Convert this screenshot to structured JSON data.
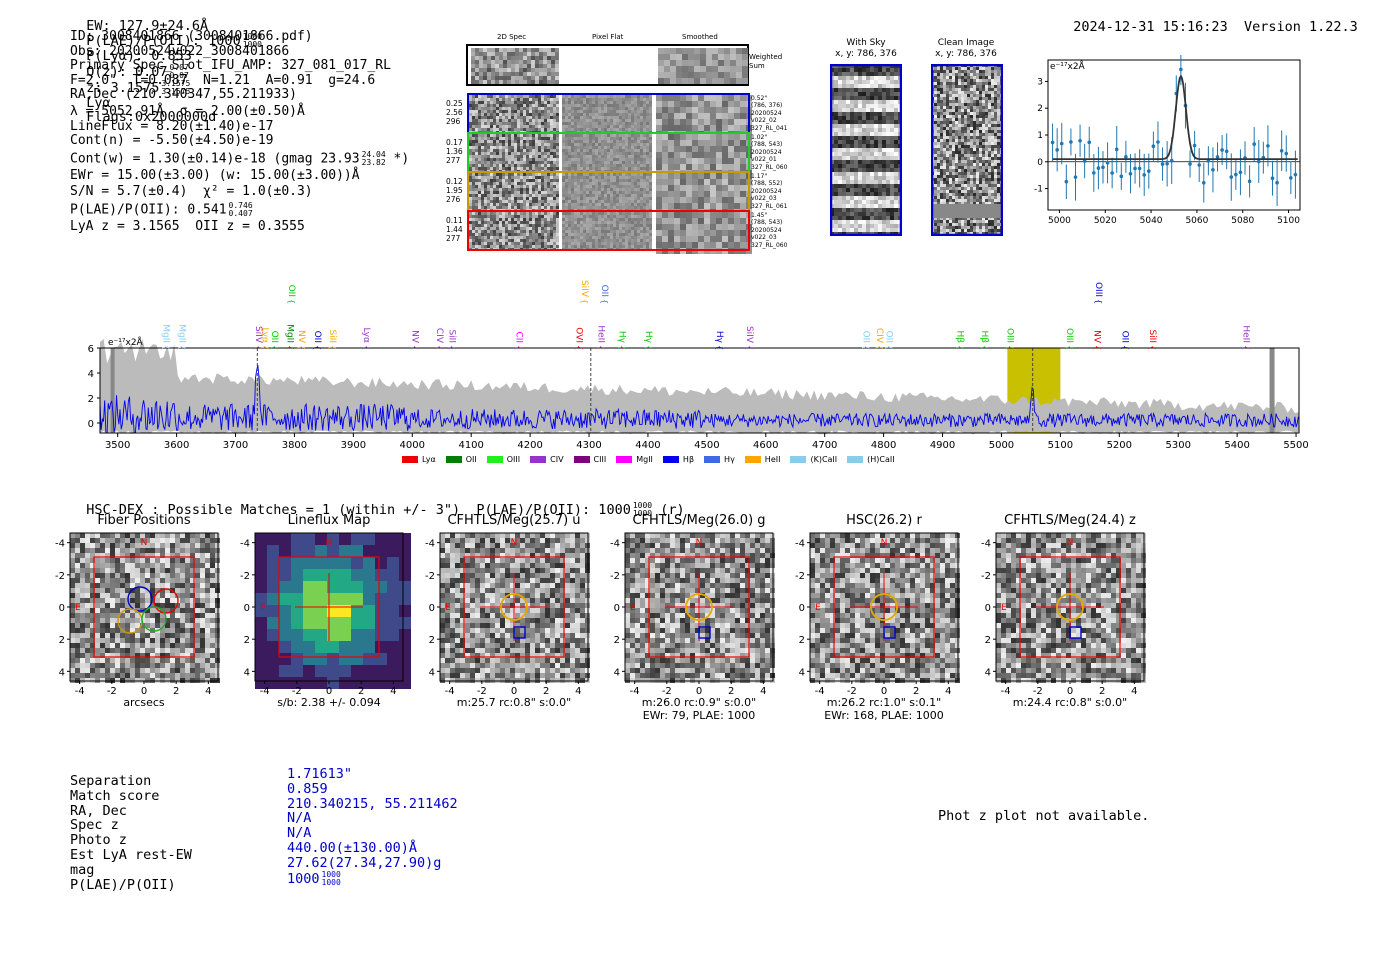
{
  "header": {
    "ew": "EW: 127.9±24.6Å",
    "plae_label": "P(LAE)/P(OII): 1000",
    "plae_hi": "1000",
    "plae_lo": "1000",
    "plya": "P(Lyα): 0.853",
    "qz": "Q(z): 0.07",
    "qz_hi": "0.07",
    "qz_lo": "0.07",
    "z": "z: 3.1575",
    "z_hi": "3.1575",
    "z_lo": "3.1575",
    "line": "Lyα",
    "flags": "Flags:0x2000000d",
    "timestamp": "2024-12-31 15:16:23",
    "version": "Version 1.22.3"
  },
  "info": {
    "l1": "ID: 3008401866 (3008401866.pdf)",
    "l2": "Obs: 20200524v022_3008401866",
    "l3": "Primary Spec_Slot_IFU_AMP: 327_081_017_RL",
    "l4": "F=2.0\"  T=0.087  N=1.21  A=0.91  g=24.6",
    "l5": "RA,Dec (210.340347,55.211933)",
    "l6": "λ = 5052.91Å  σ = 2.00(±0.50)Å",
    "l7": "LineFlux = 8.20(±1.40)e-17",
    "l8": "Cont(n) = -5.50(±4.50)e-19",
    "l9": "Cont(w) = 1.30(±0.14)e-18 (gmag 23.93",
    "l9_hi": "24.04",
    "l9_lo": "23.82",
    "l9_end": "*)",
    "l10": "EWr = 15.00(±3.00) (w: 15.00(±3.00))Å",
    "l11": "S/N = 5.7(±0.4)  χ² = 1.0(±0.3)",
    "l12": "P(LAE)/P(OII): 0.541",
    "l12_hi": "0.746",
    "l12_lo": "0.407",
    "l13": "LyA z = 3.1565  OII z = 0.3555"
  },
  "cutouts": {
    "col_titles": [
      "2D Spec",
      "Pixel Flat",
      "Smoothed"
    ],
    "weighted_sum": "Weighted Sum",
    "rows": [
      {
        "left": [
          "0.25",
          "2.56",
          "296"
        ],
        "right": [
          "0.52\"",
          "(786, 376)",
          "20200524",
          "v022_02",
          "327_RL_041"
        ],
        "color": "#0000cc"
      },
      {
        "left": [
          "0.17",
          "1.36",
          "277"
        ],
        "right": [
          "1.02\"",
          "(788, 543)",
          "20200524",
          "v022_01",
          "327_RL_060"
        ],
        "color": "#22cc22"
      },
      {
        "left": [
          "0.12",
          "1.95",
          "276"
        ],
        "right": [
          "1.17\"",
          "(788, 552)",
          "20200524",
          "v022_03",
          "327_RL_061"
        ],
        "color": "#cc9900"
      },
      {
        "left": [
          "0.11",
          "1.44",
          "277"
        ],
        "right": [
          "1.45\"",
          "(788, 543)",
          "20200524",
          "v022_03",
          "327_RL_060"
        ],
        "color": "#ee0000"
      }
    ]
  },
  "sky": {
    "with_sky_title": "With Sky",
    "with_sky_xy": "x, y: 786, 376",
    "clean_title": "Clean Image",
    "clean_xy": "x, y: 786, 376"
  },
  "zoom_chart": {
    "ylabel": "e⁻¹⁷x2Å",
    "yticks": [
      "3",
      "2",
      "1",
      "0",
      "-1"
    ],
    "xticks": [
      "5000",
      "5020",
      "5040",
      "5060",
      "5080",
      "5100"
    ]
  },
  "spectrum": {
    "ylabel": "e⁻¹⁷x2Å",
    "yticks": [
      "6",
      "4",
      "2",
      "0"
    ],
    "xticks": [
      "3500",
      "3600",
      "3700",
      "3800",
      "3900",
      "4000",
      "4100",
      "4200",
      "4300",
      "4400",
      "4500",
      "4600",
      "4700",
      "4800",
      "4900",
      "5000",
      "5100",
      "5200",
      "5300",
      "5400",
      "5500"
    ],
    "line_labels": [
      {
        "t": "MgII",
        "c": "#87ceeb",
        "x": 3573,
        "row": 1
      },
      {
        "t": "MgII",
        "c": "#87ceeb",
        "x": 3600,
        "row": 1
      },
      {
        "t": "SiIV",
        "c": "#9932cc",
        "x": 3730,
        "row": 1
      },
      {
        "t": "Lyα",
        "c": "#ffa500",
        "x": 3741,
        "row": 1
      },
      {
        "t": "OII",
        "c": "#00cc00",
        "x": 3757,
        "row": 1
      },
      {
        "t": "MgII",
        "c": "#008000",
        "x": 3783,
        "row": 1
      },
      {
        "t": "OII",
        "c": "#00cc00",
        "x": 3786,
        "row": 0
      },
      {
        "t": "NV",
        "c": "#ffa500",
        "x": 3803,
        "row": 1
      },
      {
        "t": "OII",
        "c": "#0000cc",
        "x": 3830,
        "row": 1
      },
      {
        "t": "SiII",
        "c": "#ffa500",
        "x": 3855,
        "row": 1
      },
      {
        "t": "Lyα",
        "c": "#9932cc",
        "x": 3913,
        "row": 1
      },
      {
        "t": "NV",
        "c": "#9932cc",
        "x": 3995,
        "row": 1
      },
      {
        "t": "CIV",
        "c": "#9932cc",
        "x": 4037,
        "row": 1
      },
      {
        "t": "SiII",
        "c": "#9932cc",
        "x": 4058,
        "row": 1
      },
      {
        "t": "CII",
        "c": "#ff00ff",
        "x": 4172,
        "row": 1
      },
      {
        "t": "OVI",
        "c": "#ee0000",
        "x": 4274,
        "row": 1
      },
      {
        "t": "SiIV",
        "c": "#ffa500",
        "x": 4283,
        "row": 0
      },
      {
        "t": "OII",
        "c": "#4169e1",
        "x": 4317,
        "row": 0
      },
      {
        "t": "HeII",
        "c": "#9932cc",
        "x": 4311,
        "row": 1
      },
      {
        "t": "Hγ",
        "c": "#00cc00",
        "x": 4347,
        "row": 1
      },
      {
        "t": "Hγ",
        "c": "#00cc00",
        "x": 4392,
        "row": 1
      },
      {
        "t": "Hγ",
        "c": "#0000cc",
        "x": 4512,
        "row": 1
      },
      {
        "t": "SiIV",
        "c": "#9932cc",
        "x": 4563,
        "row": 1
      },
      {
        "t": "OII",
        "c": "#87ceeb",
        "x": 4761,
        "row": 1
      },
      {
        "t": "CIV",
        "c": "#ffa500",
        "x": 4784,
        "row": 1
      },
      {
        "t": "OII",
        "c": "#87ceeb",
        "x": 4800,
        "row": 1
      },
      {
        "t": "Hβ",
        "c": "#00cc00",
        "x": 4920,
        "row": 1
      },
      {
        "t": "Hβ",
        "c": "#00cc00",
        "x": 4962,
        "row": 1
      },
      {
        "t": "OIII",
        "c": "#00cc00",
        "x": 5005,
        "row": 1
      },
      {
        "t": "OIII",
        "c": "#00cc00",
        "x": 5106,
        "row": 1
      },
      {
        "t": "OIII",
        "c": "#0000cc",
        "x": 5155,
        "row": 0
      },
      {
        "t": "NV",
        "c": "#ee0000",
        "x": 5153,
        "row": 1
      },
      {
        "t": "OII",
        "c": "#0000cc",
        "x": 5200,
        "row": 1
      },
      {
        "t": "SiII",
        "c": "#ee0000",
        "x": 5247,
        "row": 1
      },
      {
        "t": "HeII",
        "c": "#9932cc",
        "x": 5406,
        "row": 1
      }
    ],
    "legend": [
      {
        "t": "Lyα",
        "c": "#ee0000"
      },
      {
        "t": "OII",
        "c": "#008000"
      },
      {
        "t": "OIII",
        "c": "#22ee22"
      },
      {
        "t": "CIV",
        "c": "#9932cc"
      },
      {
        "t": "CIII",
        "c": "#800080"
      },
      {
        "t": "MgII",
        "c": "#ff00ff"
      },
      {
        "t": "Hβ",
        "c": "#0000ee"
      },
      {
        "t": "Hγ",
        "c": "#4169e1"
      },
      {
        "t": "HeII",
        "c": "#ffa500"
      },
      {
        "t": "(K)CaII",
        "c": "#87ceeb"
      },
      {
        "t": "(H)CaII",
        "c": "#87ceeb"
      }
    ]
  },
  "matches": {
    "header": "HSC-DEX : Possible Matches = 1 (within +/- 3\")  P(LAE)/P(OII): 1000",
    "hi": "1000",
    "lo": "1000",
    "suffix": "(r)"
  },
  "cutout_panels": [
    {
      "title": "Fiber Positions",
      "cap1": "arcsecs",
      "cap2": "",
      "kind": "fiber"
    },
    {
      "title": "Lineflux Map",
      "cap1": "s/b: 2.38 +/- 0.094",
      "cap2": "",
      "kind": "lineflux"
    },
    {
      "title": "CFHTLS/Meg(25.7) u",
      "cap1": "m:25.7 rc:0.8\"  s:0.0\"",
      "cap2": "",
      "kind": "img"
    },
    {
      "title": "CFHTLS/Meg(26.0) g",
      "cap1": "m:26.0 rc:0.9\"  s:0.0\"",
      "cap2": "EWr: 79, PLAE: 1000",
      "kind": "img"
    },
    {
      "title": "HSC(26.2) r",
      "cap1": "m:26.2 rc:1.0\"  s:0.1\"",
      "cap2": "EWr: 168, PLAE: 1000",
      "kind": "img"
    },
    {
      "title": "CFHTLS/Meg(24.4) z",
      "cap1": "m:24.4 rc:0.8\"  s:0.0\"",
      "cap2": "",
      "kind": "img"
    }
  ],
  "panel_axis": {
    "ticks": [
      "-4",
      "-2",
      "0",
      "2",
      "4"
    ],
    "n": "N",
    "e": "E"
  },
  "summary": {
    "labels": [
      "Separation",
      "Match score",
      "RA, Dec",
      "Spec z",
      "Photo z",
      "Est LyA rest-EW",
      "mag",
      "P(LAE)/P(OII)"
    ],
    "values": [
      "1.71613\"",
      "0.859",
      "210.340215, 55.211462",
      "N/A",
      "N/A",
      "440.00(±130.00)Å",
      "27.62(27.34,27.90)g",
      "1000"
    ],
    "plae_hi": "1000",
    "plae_lo": "1000",
    "photz_msg": "Phot z plot not available."
  },
  "colors": {
    "blue": "#0000cc",
    "red": "#ee0000",
    "green": "#22cc22",
    "gold": "#cc9900",
    "olive": "#c8c000"
  }
}
